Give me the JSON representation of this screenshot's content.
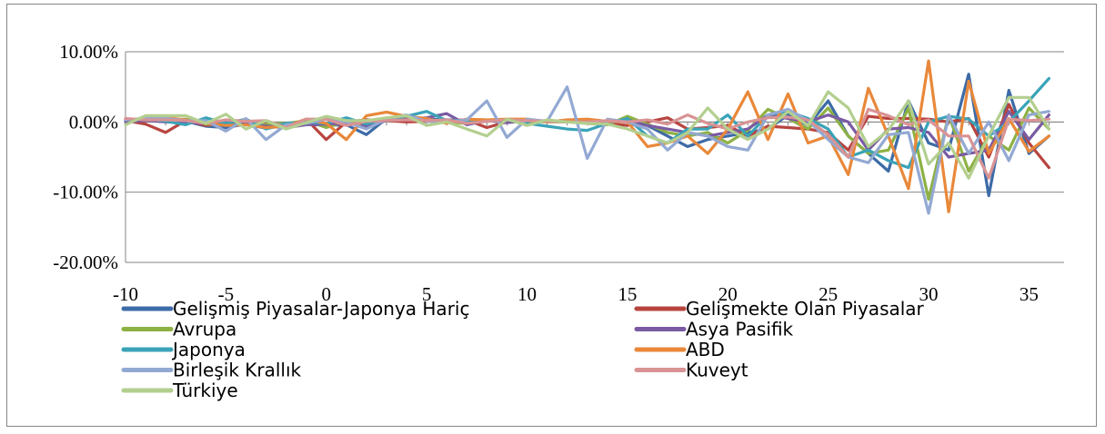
{
  "chart_data": {
    "type": "line",
    "title": "",
    "xlabel": "",
    "ylabel": "",
    "ylim": [
      -0.2,
      0.1
    ],
    "xlim": [
      -10,
      36
    ],
    "y_ticks": [
      0.1,
      0.0,
      -0.1,
      -0.2
    ],
    "y_tick_labels": [
      "10.00%",
      "0.00%",
      "-10.00%",
      "-20.00%"
    ],
    "x_ticks": [
      -10,
      -5,
      0,
      5,
      10,
      15,
      20,
      25,
      30,
      35
    ],
    "x_tick_labels": [
      "-10",
      "-5",
      "0",
      "5",
      "10",
      "15",
      "20",
      "25",
      "30",
      "35"
    ],
    "grid": "horizontal",
    "legend_position": "bottom",
    "x": [
      -10,
      -9,
      -8,
      -7,
      -6,
      -5,
      -4,
      -3,
      -2,
      -1,
      0,
      1,
      2,
      3,
      4,
      5,
      6,
      7,
      8,
      9,
      10,
      11,
      12,
      13,
      14,
      15,
      16,
      17,
      18,
      19,
      20,
      21,
      22,
      23,
      24,
      25,
      26,
      27,
      28,
      29,
      30,
      31,
      32,
      33,
      34,
      35,
      36
    ],
    "series": [
      {
        "name": "Gelişmiş Piyasalar-Japonya Hariç",
        "color": "#3d6ba7",
        "values": [
          0.003,
          0.004,
          0.002,
          0.001,
          -0.006,
          -0.008,
          -0.003,
          -0.009,
          -0.005,
          -0.003,
          -0.005,
          -0.004,
          -0.018,
          0.005,
          0.006,
          0.004,
          0.003,
          0.002,
          0.002,
          0.001,
          0.002,
          0.001,
          0.001,
          -0.002,
          -0.003,
          0.005,
          -0.005,
          -0.02,
          -0.035,
          -0.025,
          -0.02,
          -0.015,
          -0.01,
          0.01,
          -0.005,
          0.03,
          -0.02,
          -0.045,
          -0.07,
          0.03,
          -0.03,
          -0.04,
          0.068,
          -0.105,
          0.045,
          -0.045,
          -0.02
        ]
      },
      {
        "name": "Gelişmekte Olan Piyasalar",
        "color": "#b8443f",
        "values": [
          0.002,
          -0.003,
          -0.015,
          0.002,
          -0.005,
          -0.002,
          0.0,
          -0.003,
          -0.006,
          0.004,
          -0.025,
          0.0,
          0.003,
          0.002,
          0.0,
          0.001,
          0.002,
          0.003,
          -0.008,
          0.0,
          0.001,
          0.002,
          0.0,
          0.0,
          -0.002,
          -0.005,
          0.0,
          0.006,
          -0.01,
          -0.008,
          -0.005,
          -0.02,
          -0.006,
          -0.008,
          -0.01,
          -0.015,
          -0.04,
          0.008,
          0.005,
          0.005,
          0.004,
          0.0,
          0.005,
          -0.05,
          0.025,
          -0.03,
          -0.065
        ]
      },
      {
        "name": "Avrupa",
        "color": "#8db144",
        "values": [
          0.002,
          0.006,
          0.003,
          0.004,
          -0.003,
          -0.004,
          0.0,
          -0.004,
          -0.002,
          0.002,
          -0.008,
          0.001,
          -0.003,
          0.003,
          0.005,
          0.002,
          0.0,
          -0.002,
          0.001,
          0.002,
          0.001,
          0.0,
          0.0,
          -0.002,
          -0.004,
          0.008,
          -0.003,
          -0.015,
          -0.02,
          -0.015,
          -0.03,
          -0.012,
          0.018,
          0.005,
          -0.01,
          0.02,
          -0.02,
          -0.045,
          -0.04,
          0.02,
          -0.11,
          0.01,
          -0.07,
          -0.02,
          -0.04,
          0.02,
          -0.01
        ]
      },
      {
        "name": "Asya Pasifik",
        "color": "#7a5ba3",
        "values": [
          0.0,
          0.002,
          0.0,
          -0.001,
          -0.002,
          -0.001,
          -0.002,
          -0.006,
          -0.008,
          -0.004,
          -0.003,
          -0.002,
          -0.006,
          0.002,
          0.004,
          0.006,
          0.012,
          -0.004,
          0.002,
          -0.001,
          0.002,
          0.001,
          0.001,
          0.0,
          0.0,
          0.002,
          -0.005,
          -0.01,
          -0.015,
          -0.02,
          -0.015,
          -0.01,
          0.01,
          0.005,
          0.0,
          0.01,
          0.0,
          -0.04,
          -0.01,
          -0.008,
          -0.015,
          -0.05,
          -0.045,
          -0.04,
          0.015,
          -0.025,
          0.01
        ]
      },
      {
        "name": "Japonya",
        "color": "#3aa3b8",
        "values": [
          0.003,
          0.005,
          0.001,
          -0.004,
          0.006,
          -0.002,
          0.004,
          -0.01,
          -0.002,
          0.0,
          -0.002,
          0.006,
          -0.003,
          0.004,
          0.008,
          0.015,
          0.002,
          0.002,
          0.001,
          0.003,
          -0.002,
          -0.006,
          -0.01,
          -0.012,
          -0.002,
          0.005,
          -0.02,
          -0.03,
          -0.01,
          -0.01,
          0.01,
          -0.02,
          0.01,
          0.015,
          0.005,
          -0.01,
          -0.05,
          -0.04,
          -0.055,
          -0.065,
          0.0,
          0.008,
          0.004,
          -0.02,
          0.0,
          0.03,
          0.062
        ]
      },
      {
        "name": "ABD",
        "color": "#e9883a",
        "values": [
          0.004,
          0.004,
          0.006,
          0.003,
          -0.002,
          -0.005,
          -0.004,
          -0.008,
          -0.006,
          0.004,
          -0.002,
          -0.025,
          0.009,
          0.014,
          0.008,
          0.005,
          -0.002,
          0.004,
          0.003,
          0.004,
          0.004,
          0.0,
          0.003,
          0.004,
          0.001,
          0.0,
          -0.035,
          -0.03,
          -0.02,
          -0.045,
          -0.01,
          0.043,
          -0.025,
          0.04,
          -0.03,
          -0.02,
          -0.075,
          0.048,
          -0.02,
          -0.095,
          0.087,
          -0.128,
          0.058,
          -0.045,
          0.005,
          -0.042,
          -0.02
        ]
      },
      {
        "name": "Birleşik Krallık",
        "color": "#93a9d3",
        "values": [
          0.003,
          0.005,
          0.005,
          0.002,
          0.002,
          -0.013,
          0.005,
          -0.025,
          -0.004,
          -0.002,
          0.004,
          0.0,
          -0.01,
          0.004,
          0.01,
          0.001,
          0.0,
          0.003,
          0.03,
          -0.022,
          0.004,
          0.001,
          0.05,
          -0.052,
          0.004,
          0.0,
          -0.01,
          -0.04,
          -0.015,
          -0.02,
          -0.035,
          -0.04,
          0.01,
          0.018,
          0.002,
          -0.025,
          -0.05,
          -0.058,
          -0.018,
          -0.015,
          -0.13,
          0.01,
          -0.045,
          0.0,
          -0.055,
          0.01,
          0.015
        ]
      },
      {
        "name": "Kuveyt",
        "color": "#d99394",
        "values": [
          0.005,
          0.003,
          0.003,
          0.002,
          -0.002,
          0.003,
          0.001,
          0.002,
          -0.008,
          0.004,
          0.004,
          -0.005,
          0.001,
          0.002,
          0.003,
          0.002,
          0.003,
          -0.002,
          0.001,
          0.003,
          0.002,
          0.001,
          0.0,
          0.0,
          0.002,
          0.0,
          0.003,
          -0.003,
          0.01,
          -0.002,
          -0.01,
          0.0,
          0.006,
          0.007,
          0.003,
          -0.018,
          -0.05,
          0.018,
          0.009,
          -0.004,
          0.003,
          -0.02,
          -0.02,
          -0.08,
          0.004,
          0.002,
          0.004
        ]
      },
      {
        "name": "Türkiye",
        "color": "#b3cf8f",
        "values": [
          -0.004,
          0.009,
          0.009,
          0.009,
          -0.002,
          0.011,
          -0.01,
          0.002,
          -0.01,
          -0.001,
          0.008,
          0.002,
          0.002,
          0.006,
          0.009,
          -0.005,
          0.0,
          -0.01,
          -0.02,
          0.004,
          -0.005,
          0.003,
          0.0,
          -0.002,
          -0.003,
          -0.01,
          -0.02,
          -0.03,
          -0.015,
          0.02,
          -0.01,
          -0.025,
          -0.01,
          0.015,
          -0.005,
          0.043,
          0.02,
          -0.035,
          -0.012,
          0.03,
          -0.06,
          -0.03,
          -0.08,
          -0.02,
          0.035,
          0.035,
          -0.01
        ]
      }
    ]
  }
}
